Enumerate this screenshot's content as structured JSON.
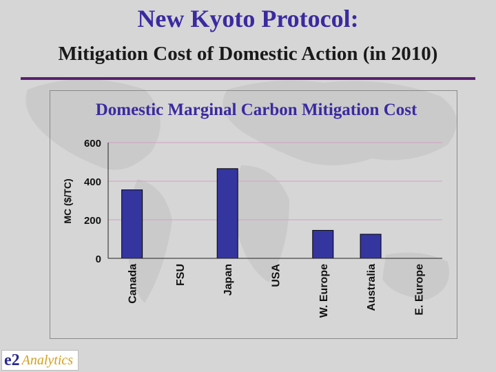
{
  "slide": {
    "title": "New Kyoto Protocol:",
    "subtitle": "Mitigation Cost of Domestic Action (in 2010)"
  },
  "logo": {
    "prefix": "e2",
    "name": "Analytics"
  },
  "colors": {
    "title": "#3a2aa0",
    "bar_fill": "#3535a0",
    "gridline": "#d4a0c4",
    "rule": "#5a2070"
  },
  "chart_data": {
    "type": "bar",
    "title": "Domestic Marginal Carbon Mitigation Cost",
    "ylabel": "MC ($/TC)",
    "xlabel": "",
    "categories": [
      "Canada",
      "FSU",
      "Japan",
      "USA",
      "W. Europe",
      "Australia",
      "E. Europe"
    ],
    "values": [
      355,
      0,
      465,
      0,
      145,
      125,
      0
    ],
    "ylim": [
      0,
      600
    ],
    "yticks": [
      0,
      200,
      400,
      600
    ],
    "grid": true,
    "legend": "none"
  }
}
